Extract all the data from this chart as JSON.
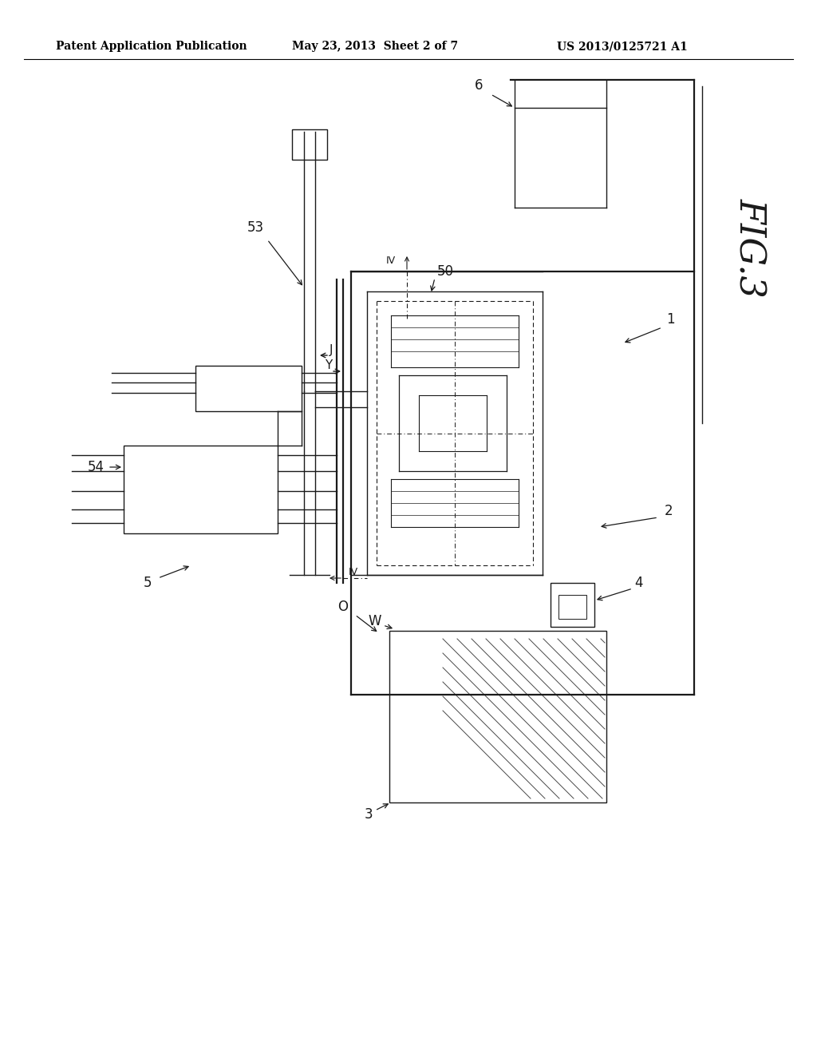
{
  "bg_color": "#ffffff",
  "header_left": "Patent Application Publication",
  "header_mid": "May 23, 2013  Sheet 2 of 7",
  "header_right": "US 2013/0125721 A1",
  "fig_label": "FIG.3"
}
